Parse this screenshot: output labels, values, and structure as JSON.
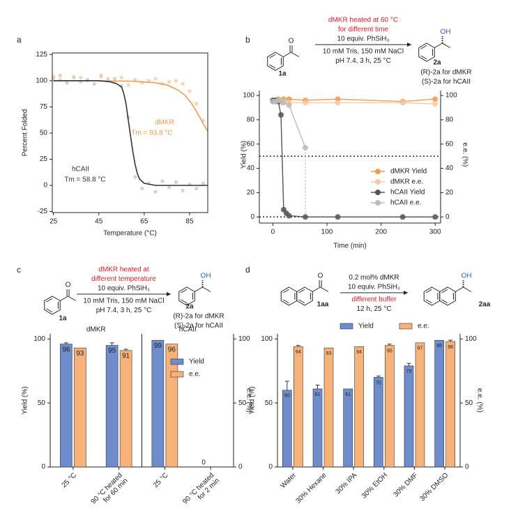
{
  "chart_data": [
    {
      "panel": "a",
      "type": "scatter",
      "xlabel": "Temperature (°C)",
      "ylabel": "Percent Folded",
      "xlim": [
        24.5,
        93
      ],
      "ylim": [
        -26,
        126.5
      ],
      "xticks": [
        25,
        45,
        65,
        85
      ],
      "yticks": [
        -25,
        0,
        25,
        50,
        75,
        100,
        125
      ],
      "series": [
        {
          "name": "dMKR",
          "annotation": "Tm = 93.8 °C",
          "color": "#f39a4e",
          "point_color": "#f9d3b2",
          "points": {
            "x": [
              25,
              28,
              31,
              34,
              37,
              40,
              43,
              46,
              49,
              52,
              55,
              58,
              61,
              64,
              67,
              70,
              73,
              76,
              79,
              82,
              85,
              88,
              91
            ],
            "values": [
              104,
              101,
              98,
              104,
              103,
              100,
              97,
              105,
              102,
              99,
              103,
              96,
              101,
              98,
              100,
              102,
              97,
              99,
              100,
              97,
              90,
              78,
              62
            ]
          },
          "fit": {
            "x": [
              25,
              40,
              60,
              70,
              75,
              80,
              83,
              86,
              89,
              91,
              93
            ],
            "values": [
              100,
              100,
              99.5,
              98,
              96,
              91,
              86,
              78,
              67,
              59,
              52
            ]
          }
        },
        {
          "name": "hCAII",
          "annotation": "Tm = 58.8 °C",
          "color": "#333333",
          "point_color": "#d2d2d2",
          "points": {
            "x": [
              25,
              28,
              31,
              34,
              37,
              40,
              43,
              46,
              49,
              52,
              55,
              58,
              61,
              64,
              67,
              70,
              73,
              76,
              79,
              82,
              85,
              88,
              91
            ],
            "values": [
              102,
              105,
              98,
              103,
              99,
              101,
              97,
              104,
              100,
              102,
              95,
              65,
              8,
              -3,
              2,
              -6,
              4,
              -2,
              3,
              -5,
              1,
              -3,
              2
            ]
          },
          "fit": {
            "x": [
              25,
              35,
              45,
              50,
              53,
              55,
              56,
              57,
              58,
              59,
              60,
              61,
              62,
              63,
              65,
              70,
              80,
              93
            ],
            "values": [
              100,
              100,
              100,
              99,
              97,
              94,
              88,
              78,
              62,
              47,
              32,
              20,
              11,
              6,
              2,
              0,
              0,
              0
            ]
          }
        }
      ]
    },
    {
      "panel": "b",
      "type": "line",
      "xlabel": "Time (min)",
      "ylabel": "Yield (%)",
      "y2label": "e.e. (%)",
      "xlim": [
        -25,
        310
      ],
      "ylim": [
        -5,
        104
      ],
      "y2lim": [
        -5,
        104
      ],
      "xticks": [
        0,
        100,
        200,
        300
      ],
      "yticks": [
        0,
        20,
        40,
        60,
        80,
        100
      ],
      "y2ticks": [
        0,
        20,
        40,
        60,
        80,
        100
      ],
      "reference_lines": [
        50,
        0
      ],
      "guide": {
        "x": 60,
        "y": [
          0,
          57
        ]
      },
      "scheme": {
        "reactant": "1a",
        "product": "2a",
        "reactant_atom": "O",
        "product_atom": "OH",
        "above": [
          {
            "text": "dMKR heated at 60 °C",
            "color": "#d4202c"
          },
          {
            "text": "for different time",
            "color": "#d4202c"
          },
          {
            "text": "10 equiv. PhSiH₃",
            "color": "#222222"
          }
        ],
        "below": [
          {
            "text": "10 mM Tris, 150 mM NaCl",
            "color": "#222222"
          },
          {
            "text": "pH 7.4, 3 h, 25 °C",
            "color": "#222222"
          }
        ],
        "product_notes": [
          "(R)-2a for dMKR",
          "(S)-2a for hCAII"
        ]
      },
      "series": [
        {
          "name": "dMKR Yield",
          "color": "#f39a4e",
          "axis": "y",
          "x": [
            0,
            5,
            10,
            15,
            20,
            30,
            60,
            120,
            240,
            300
          ],
          "values": [
            96,
            96,
            97,
            96,
            97,
            97,
            96,
            97,
            95,
            97
          ]
        },
        {
          "name": "dMKR e.e.",
          "color": "#f8c9a0",
          "axis": "y2",
          "x": [
            0,
            5,
            10,
            15,
            20,
            30,
            60,
            120,
            240,
            300
          ],
          "values": [
            95,
            95,
            95,
            94,
            95,
            94,
            94,
            94,
            94,
            93
          ]
        },
        {
          "name": "hCAII Yield",
          "color": "#555555",
          "axis": "y",
          "x": [
            0,
            5,
            10,
            15,
            20,
            25,
            30,
            60,
            120,
            240,
            300
          ],
          "values": [
            96,
            96,
            95,
            84,
            6,
            3,
            1,
            0,
            0,
            0,
            0
          ]
        },
        {
          "name": "hCAII e.e.",
          "color": "#bbbbbb",
          "axis": "y2",
          "x": [
            0,
            5,
            10,
            15,
            20,
            30,
            60
          ],
          "values": [
            95,
            95,
            96,
            96,
            94,
            92,
            57
          ]
        }
      ]
    },
    {
      "panel": "c",
      "type": "bar",
      "ylabel": "Yield (%)",
      "y2label": "e.e. (%)",
      "legend": "right",
      "ylim": [
        0,
        104
      ],
      "y2lim": [
        0,
        104
      ],
      "yticks": [
        0,
        50,
        100
      ],
      "y2ticks": [
        0,
        50,
        100
      ],
      "groups": [
        "dMKR",
        "hCAII"
      ],
      "categories": [
        [
          "25 °C"
        ],
        [
          "90 °C heated",
          "for 60 min"
        ],
        [
          "25 °C"
        ],
        [
          "90 °C heated",
          "for 2 min"
        ]
      ],
      "scheme": {
        "reactant": "1a",
        "product": "2a",
        "reactant_atom": "O",
        "product_atom": "OH",
        "above": [
          {
            "text": "dMKR heated at",
            "color": "#d4202c"
          },
          {
            "text": "different temperature",
            "color": "#d4202c"
          },
          {
            "text": "10 equiv. PhSiH₃",
            "color": "#222222"
          }
        ],
        "below": [
          {
            "text": "10 mM Tris, 150 mM NaCl",
            "color": "#222222"
          },
          {
            "text": "pH 7.4, 3 h, 25 °C",
            "color": "#222222"
          }
        ],
        "product_notes": [
          "(R)-2a for dMKR",
          "(S)-2a for hCAII"
        ]
      },
      "series": [
        {
          "name": "Yield",
          "color": "#6f8ccc",
          "values": [
            96,
            95,
            99,
            0
          ],
          "errors": [
            1,
            2,
            null,
            null
          ]
        },
        {
          "name": "e.e.",
          "color": "#f7b27a",
          "values": [
            93,
            91,
            96,
            null
          ],
          "errors": [
            null,
            1,
            null,
            null
          ]
        }
      ]
    },
    {
      "panel": "d",
      "type": "bar",
      "ylabel": "Yield (%)",
      "y2label": "e.e. (%)",
      "legend": "top",
      "ylim": [
        0,
        104
      ],
      "y2lim": [
        0,
        104
      ],
      "yticks": [
        0,
        50,
        100
      ],
      "y2ticks": [
        0,
        50,
        100
      ],
      "categories": [
        [
          "Water"
        ],
        [
          "30% Hexane"
        ],
        [
          "30% IPA"
        ],
        [
          "30% EtOH"
        ],
        [
          "30% DMF"
        ],
        [
          "30% DMSO"
        ]
      ],
      "scheme": {
        "reactant": "1aa",
        "product": "2aa",
        "reactant_atom": "O",
        "product_atom": "OH",
        "naphthyl": true,
        "above": [
          {
            "text": "0.2 mol% dMKR",
            "color": "#222222"
          },
          {
            "text": "10 equiv. PhSiH₃",
            "color": "#222222"
          }
        ],
        "below": [
          {
            "text": "different buffer",
            "color": "#d4202c"
          },
          {
            "text": "12 h, 25 °C",
            "color": "#222222"
          }
        ],
        "product_notes": []
      },
      "series": [
        {
          "name": "Yield",
          "color": "#6f8ccc",
          "values": [
            60,
            61,
            61,
            70,
            79,
            99
          ],
          "errors": [
            7,
            3,
            null,
            1,
            2,
            null
          ]
        },
        {
          "name": "e.e.",
          "color": "#f7b27a",
          "values": [
            94,
            93,
            94,
            95,
            97,
            98
          ],
          "errors": [
            1,
            null,
            null,
            1,
            null,
            1
          ]
        }
      ]
    }
  ]
}
